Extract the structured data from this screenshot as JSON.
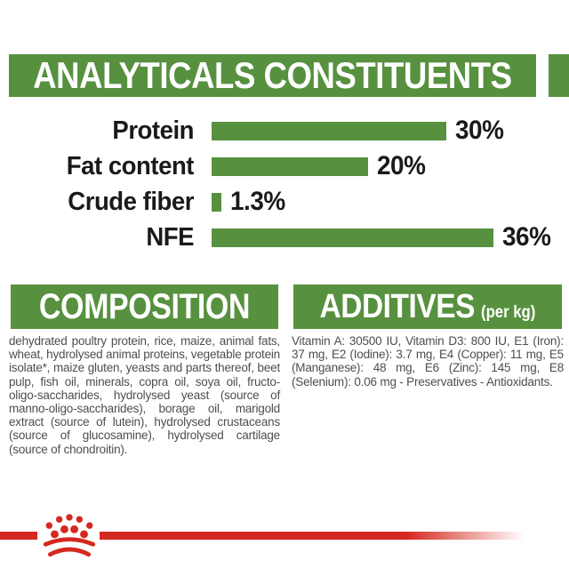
{
  "colors": {
    "green": "#57913f",
    "red": "#d5281f",
    "header_text": "#ffffff",
    "body_text": "#4e4e4e",
    "chart_text": "#1a1a1a"
  },
  "analytics": {
    "title": "ANALYTICALS CONSTITUENTS"
  },
  "chart_data": {
    "type": "bar",
    "orientation": "horizontal",
    "title": "ANALYTICALS CONSTITUENTS",
    "categories": [
      "Protein",
      "Fat content",
      "Crude fiber",
      "NFE"
    ],
    "values": [
      30,
      20,
      1.3,
      36
    ],
    "value_labels": [
      "30%",
      "20%",
      "1.3%",
      "36%"
    ],
    "unit": "%",
    "xlim": [
      0,
      40
    ],
    "bar_color": "#57913f",
    "grid": false,
    "legend": false
  },
  "composition": {
    "title": "COMPOSITION",
    "body": "dehydrated poultry protein, rice, maize, animal fats, wheat, hydrolysed animal proteins, vegetable protein isolate*, maize gluten, yeasts and parts thereof, beet pulp, fish oil, minerals, copra oil, soya oil, fructo-oligo-saccharides, hydrolysed yeast (source of manno-oligo-saccharides), borage oil, marigold extract (source of lutein), hydrolysed crustaceans (source of glucosamine), hydrolysed cartilage (source of chondroitin)."
  },
  "additives": {
    "title": "ADDITIVES",
    "subtitle": "(per kg)",
    "body": "Vitamin A: 30500 IU, Vitamin D3: 800 IU, E1 (Iron): 37 mg, E2 (Iodine): 3.7 mg, E4 (Copper): 11 mg, E5 (Manganese): 48 mg, E6 (Zinc): 145 mg, E8 (Selenium): 0.06 mg - Preservatives - Antioxidants."
  },
  "footer": {
    "brand_mark": "royal-canin-crown"
  }
}
